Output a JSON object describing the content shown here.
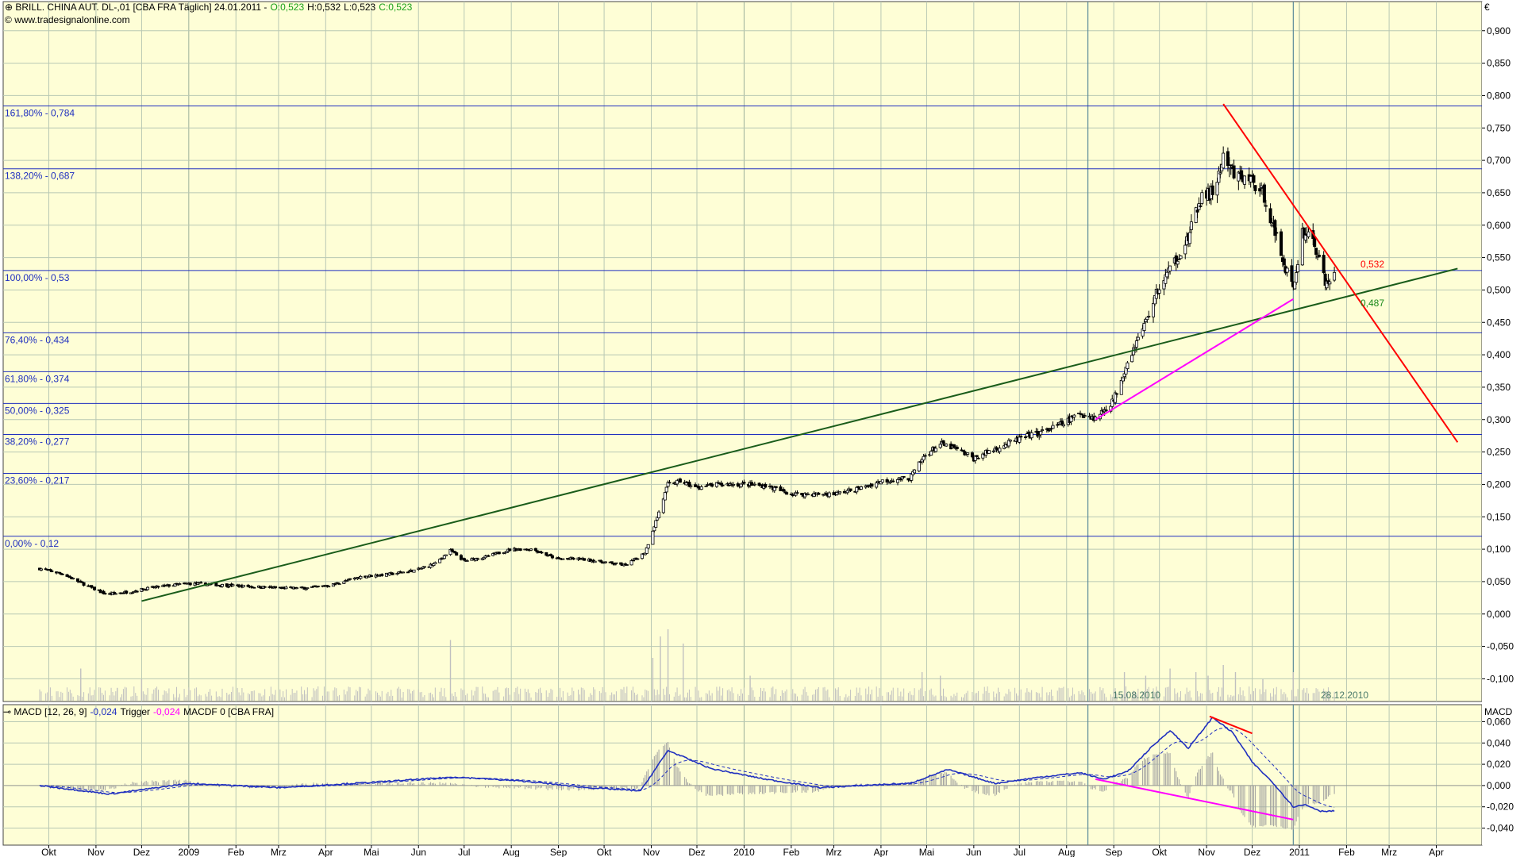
{
  "header": {
    "instrument": "BRILL. CHINA AUT.  DL-,01 [CBA FRA  Täglich] 24.01.2011 -",
    "open": "O:0,523",
    "high": "H:0,532",
    "low": "L:0,523",
    "close": "C:0,523",
    "source": "www.tradesignalonline.com",
    "currency": "€"
  },
  "macd_header": {
    "label": "MACD [12, 26, 9]",
    "macd_value": "-0,024",
    "trigger_label": "Trigger",
    "trigger_value": "-0,024",
    "macdf_label": "MACDF 0 [CBA FRA]",
    "axis_title": "MACD"
  },
  "markers": {
    "left_date": "15.08.2010",
    "right_date": "28.12.2010",
    "red_value": "0,532",
    "green_value": "0,487"
  },
  "colors": {
    "background": "#fefed6",
    "grid": "#b8c8b4",
    "fib_line": "#1f2fbf",
    "trend_green": "#1a5c1a",
    "trend_red": "#ff0000",
    "trend_magenta": "#ff00ff",
    "macd_line": "#1f2fbf",
    "volume": "#c0c0c0"
  },
  "chart_data": [
    {
      "type": "candlestick",
      "title": "BRILL. CHINA AUT. DL-,01 [CBA FRA Täglich]",
      "y_axis_ticks": [
        "0,900",
        "0,850",
        "0,800",
        "0,750",
        "0,700",
        "0,650",
        "0,600",
        "0,550",
        "0,500",
        "0,450",
        "0,400",
        "0,350",
        "0,300",
        "0,250",
        "0,200",
        "0,150",
        "0,100",
        "0,050",
        "0,000",
        "-0,050",
        "-0,100"
      ],
      "ylim": [
        -0.135,
        0.945
      ],
      "x_axis_labels": [
        "Okt",
        "Nov",
        "Dez",
        "2009",
        "Feb",
        "Mrz",
        "Apr",
        "Mai",
        "Jun",
        "Jul",
        "Aug",
        "Sep",
        "Okt",
        "Nov",
        "Dez",
        "2010",
        "Feb",
        "Mrz",
        "Apr",
        "Mai",
        "Jun",
        "Jul",
        "Aug",
        "Sep",
        "Okt",
        "Nov",
        "Dez",
        "2011",
        "Feb",
        "Mrz",
        "Apr"
      ],
      "fibonacci_levels": [
        {
          "label": "161,80% - 0,784",
          "value": 0.784
        },
        {
          "label": "138,20% - 0,687",
          "value": 0.687
        },
        {
          "label": "100,00% - 0,53",
          "value": 0.53
        },
        {
          "label": "76,40% - 0,434",
          "value": 0.434
        },
        {
          "label": "61,80% - 0,374",
          "value": 0.374
        },
        {
          "label": "50,00% - 0,325",
          "value": 0.325
        },
        {
          "label": "38,20% - 0,277",
          "value": 0.277
        },
        {
          "label": "23,60% - 0,217",
          "value": 0.217
        },
        {
          "label": "0,00% - 0,12",
          "value": 0.12
        }
      ],
      "price_path": [
        [
          "2008-09-25",
          0.07
        ],
        [
          "2008-10-10",
          0.062
        ],
        [
          "2008-10-25",
          0.045
        ],
        [
          "2008-11-08",
          0.03
        ],
        [
          "2008-11-25",
          0.035
        ],
        [
          "2008-12-01",
          0.038
        ],
        [
          "2008-12-15",
          0.043
        ],
        [
          "2009-01-01",
          0.047
        ],
        [
          "2009-01-20",
          0.045
        ],
        [
          "2009-02-15",
          0.042
        ],
        [
          "2009-03-01",
          0.04
        ],
        [
          "2009-03-20",
          0.04
        ],
        [
          "2009-04-05",
          0.045
        ],
        [
          "2009-04-25",
          0.058
        ],
        [
          "2009-05-15",
          0.062
        ],
        [
          "2009-05-31",
          0.068
        ],
        [
          "2009-06-12",
          0.078
        ],
        [
          "2009-06-22",
          0.098
        ],
        [
          "2009-07-01",
          0.082
        ],
        [
          "2009-07-15",
          0.088
        ],
        [
          "2009-08-01",
          0.1
        ],
        [
          "2009-08-15",
          0.1
        ],
        [
          "2009-08-31",
          0.085
        ],
        [
          "2009-09-15",
          0.085
        ],
        [
          "2009-10-01",
          0.08
        ],
        [
          "2009-10-15",
          0.075
        ],
        [
          "2009-10-28",
          0.095
        ],
        [
          "2009-11-05",
          0.15
        ],
        [
          "2009-11-12",
          0.2
        ],
        [
          "2009-11-20",
          0.205
        ],
        [
          "2009-11-30",
          0.195
        ],
        [
          "2009-12-15",
          0.2
        ],
        [
          "2010-01-01",
          0.2
        ],
        [
          "2010-01-15",
          0.198
        ],
        [
          "2010-02-01",
          0.185
        ],
        [
          "2010-02-15",
          0.185
        ],
        [
          "2010-03-01",
          0.185
        ],
        [
          "2010-03-20",
          0.195
        ],
        [
          "2010-04-01",
          0.205
        ],
        [
          "2010-04-20",
          0.21
        ],
        [
          "2010-04-30",
          0.245
        ],
        [
          "2010-05-10",
          0.262
        ],
        [
          "2010-05-20",
          0.255
        ],
        [
          "2010-06-01",
          0.24
        ],
        [
          "2010-06-15",
          0.255
        ],
        [
          "2010-07-01",
          0.27
        ],
        [
          "2010-07-15",
          0.28
        ],
        [
          "2010-07-31",
          0.295
        ],
        [
          "2010-08-10",
          0.31
        ],
        [
          "2010-08-20",
          0.302
        ],
        [
          "2010-09-01",
          0.33
        ],
        [
          "2010-09-10",
          0.39
        ],
        [
          "2010-09-20",
          0.44
        ],
        [
          "2010-09-30",
          0.5
        ],
        [
          "2010-10-10",
          0.54
        ],
        [
          "2010-10-20",
          0.58
        ],
        [
          "2010-10-28",
          0.64
        ],
        [
          "2010-11-05",
          0.65
        ],
        [
          "2010-11-12",
          0.7
        ],
        [
          "2010-11-20",
          0.675
        ],
        [
          "2010-12-01",
          0.67
        ],
        [
          "2010-12-10",
          0.64
        ],
        [
          "2010-12-18",
          0.57
        ],
        [
          "2010-12-28",
          0.5
        ],
        [
          "2011-01-03",
          0.59
        ],
        [
          "2011-01-10",
          0.58
        ],
        [
          "2011-01-18",
          0.51
        ],
        [
          "2011-01-24",
          0.523
        ]
      ],
      "volume_spikes": [
        [
          "2008-10-22",
          0.45
        ],
        [
          "2008-11-15",
          0.18
        ],
        [
          "2008-12-01",
          0.3
        ],
        [
          "2009-06-22",
          0.85
        ],
        [
          "2009-11-02",
          0.6
        ],
        [
          "2009-11-07",
          0.9
        ],
        [
          "2009-11-12",
          1.0
        ],
        [
          "2009-11-22",
          0.8
        ],
        [
          "2010-01-05",
          0.35
        ],
        [
          "2010-04-28",
          0.4
        ],
        [
          "2010-05-10",
          0.35
        ],
        [
          "2010-09-08",
          0.4
        ],
        [
          "2010-09-22",
          0.35
        ],
        [
          "2010-10-08",
          0.45
        ],
        [
          "2010-10-25",
          0.4
        ],
        [
          "2010-11-02",
          0.35
        ],
        [
          "2010-11-12",
          0.5
        ],
        [
          "2010-11-20",
          0.4
        ],
        [
          "2010-12-08",
          0.3
        ],
        [
          "2010-12-28",
          0.4
        ]
      ],
      "trendlines": [
        {
          "color": "green",
          "from": [
            "2008-12-01",
            0.02
          ],
          "to": [
            "2011-04-15",
            0.533
          ]
        },
        {
          "color": "red",
          "from": [
            "2010-11-12",
            0.787
          ],
          "to": [
            "2011-04-15",
            0.265
          ]
        },
        {
          "color": "magenta",
          "from": [
            "2010-08-20",
            0.3
          ],
          "to": [
            "2010-12-28",
            0.486
          ]
        }
      ],
      "vertical_markers": [
        "2010-08-15",
        "2010-12-28"
      ]
    },
    {
      "type": "line",
      "title": "MACD [12, 26, 9]",
      "y_axis_ticks": [
        "0,060",
        "0,040",
        "0,020",
        "0,000",
        "-0,020",
        "-0,040"
      ],
      "ylim": [
        -0.056,
        0.076
      ],
      "series": [
        {
          "name": "MACD",
          "points": [
            [
              "2008-09-25",
              0.0
            ],
            [
              "2008-11-10",
              -0.008
            ],
            [
              "2009-01-01",
              0.002
            ],
            [
              "2009-03-01",
              -0.002
            ],
            [
              "2009-05-01",
              0.003
            ],
            [
              "2009-06-25",
              0.008
            ],
            [
              "2009-08-10",
              0.004
            ],
            [
              "2009-09-20",
              -0.002
            ],
            [
              "2009-10-25",
              -0.005
            ],
            [
              "2009-11-12",
              0.033
            ],
            [
              "2009-12-10",
              0.016
            ],
            [
              "2010-01-15",
              0.006
            ],
            [
              "2010-02-20",
              -0.002
            ],
            [
              "2010-04-01",
              0.001
            ],
            [
              "2010-04-20",
              0.002
            ],
            [
              "2010-05-15",
              0.015
            ],
            [
              "2010-06-15",
              0.002
            ],
            [
              "2010-07-15",
              0.008
            ],
            [
              "2010-08-10",
              0.012
            ],
            [
              "2010-08-25",
              0.006
            ],
            [
              "2010-09-10",
              0.013
            ],
            [
              "2010-09-25",
              0.035
            ],
            [
              "2010-10-08",
              0.052
            ],
            [
              "2010-10-20",
              0.035
            ],
            [
              "2010-11-05",
              0.064
            ],
            [
              "2010-11-18",
              0.05
            ],
            [
              "2010-12-01",
              0.022
            ],
            [
              "2010-12-15",
              0.002
            ],
            [
              "2010-12-28",
              -0.02
            ],
            [
              "2011-01-05",
              -0.018
            ],
            [
              "2011-01-15",
              -0.024
            ],
            [
              "2011-01-24",
              -0.024
            ]
          ]
        }
      ],
      "divergence_lines": [
        {
          "color": "red",
          "from": [
            "2010-11-03",
            0.065
          ],
          "to": [
            "2010-12-01",
            0.049
          ]
        },
        {
          "color": "magenta",
          "from": [
            "2010-08-20",
            0.006
          ],
          "to": [
            "2010-12-28",
            -0.032
          ]
        }
      ]
    }
  ]
}
